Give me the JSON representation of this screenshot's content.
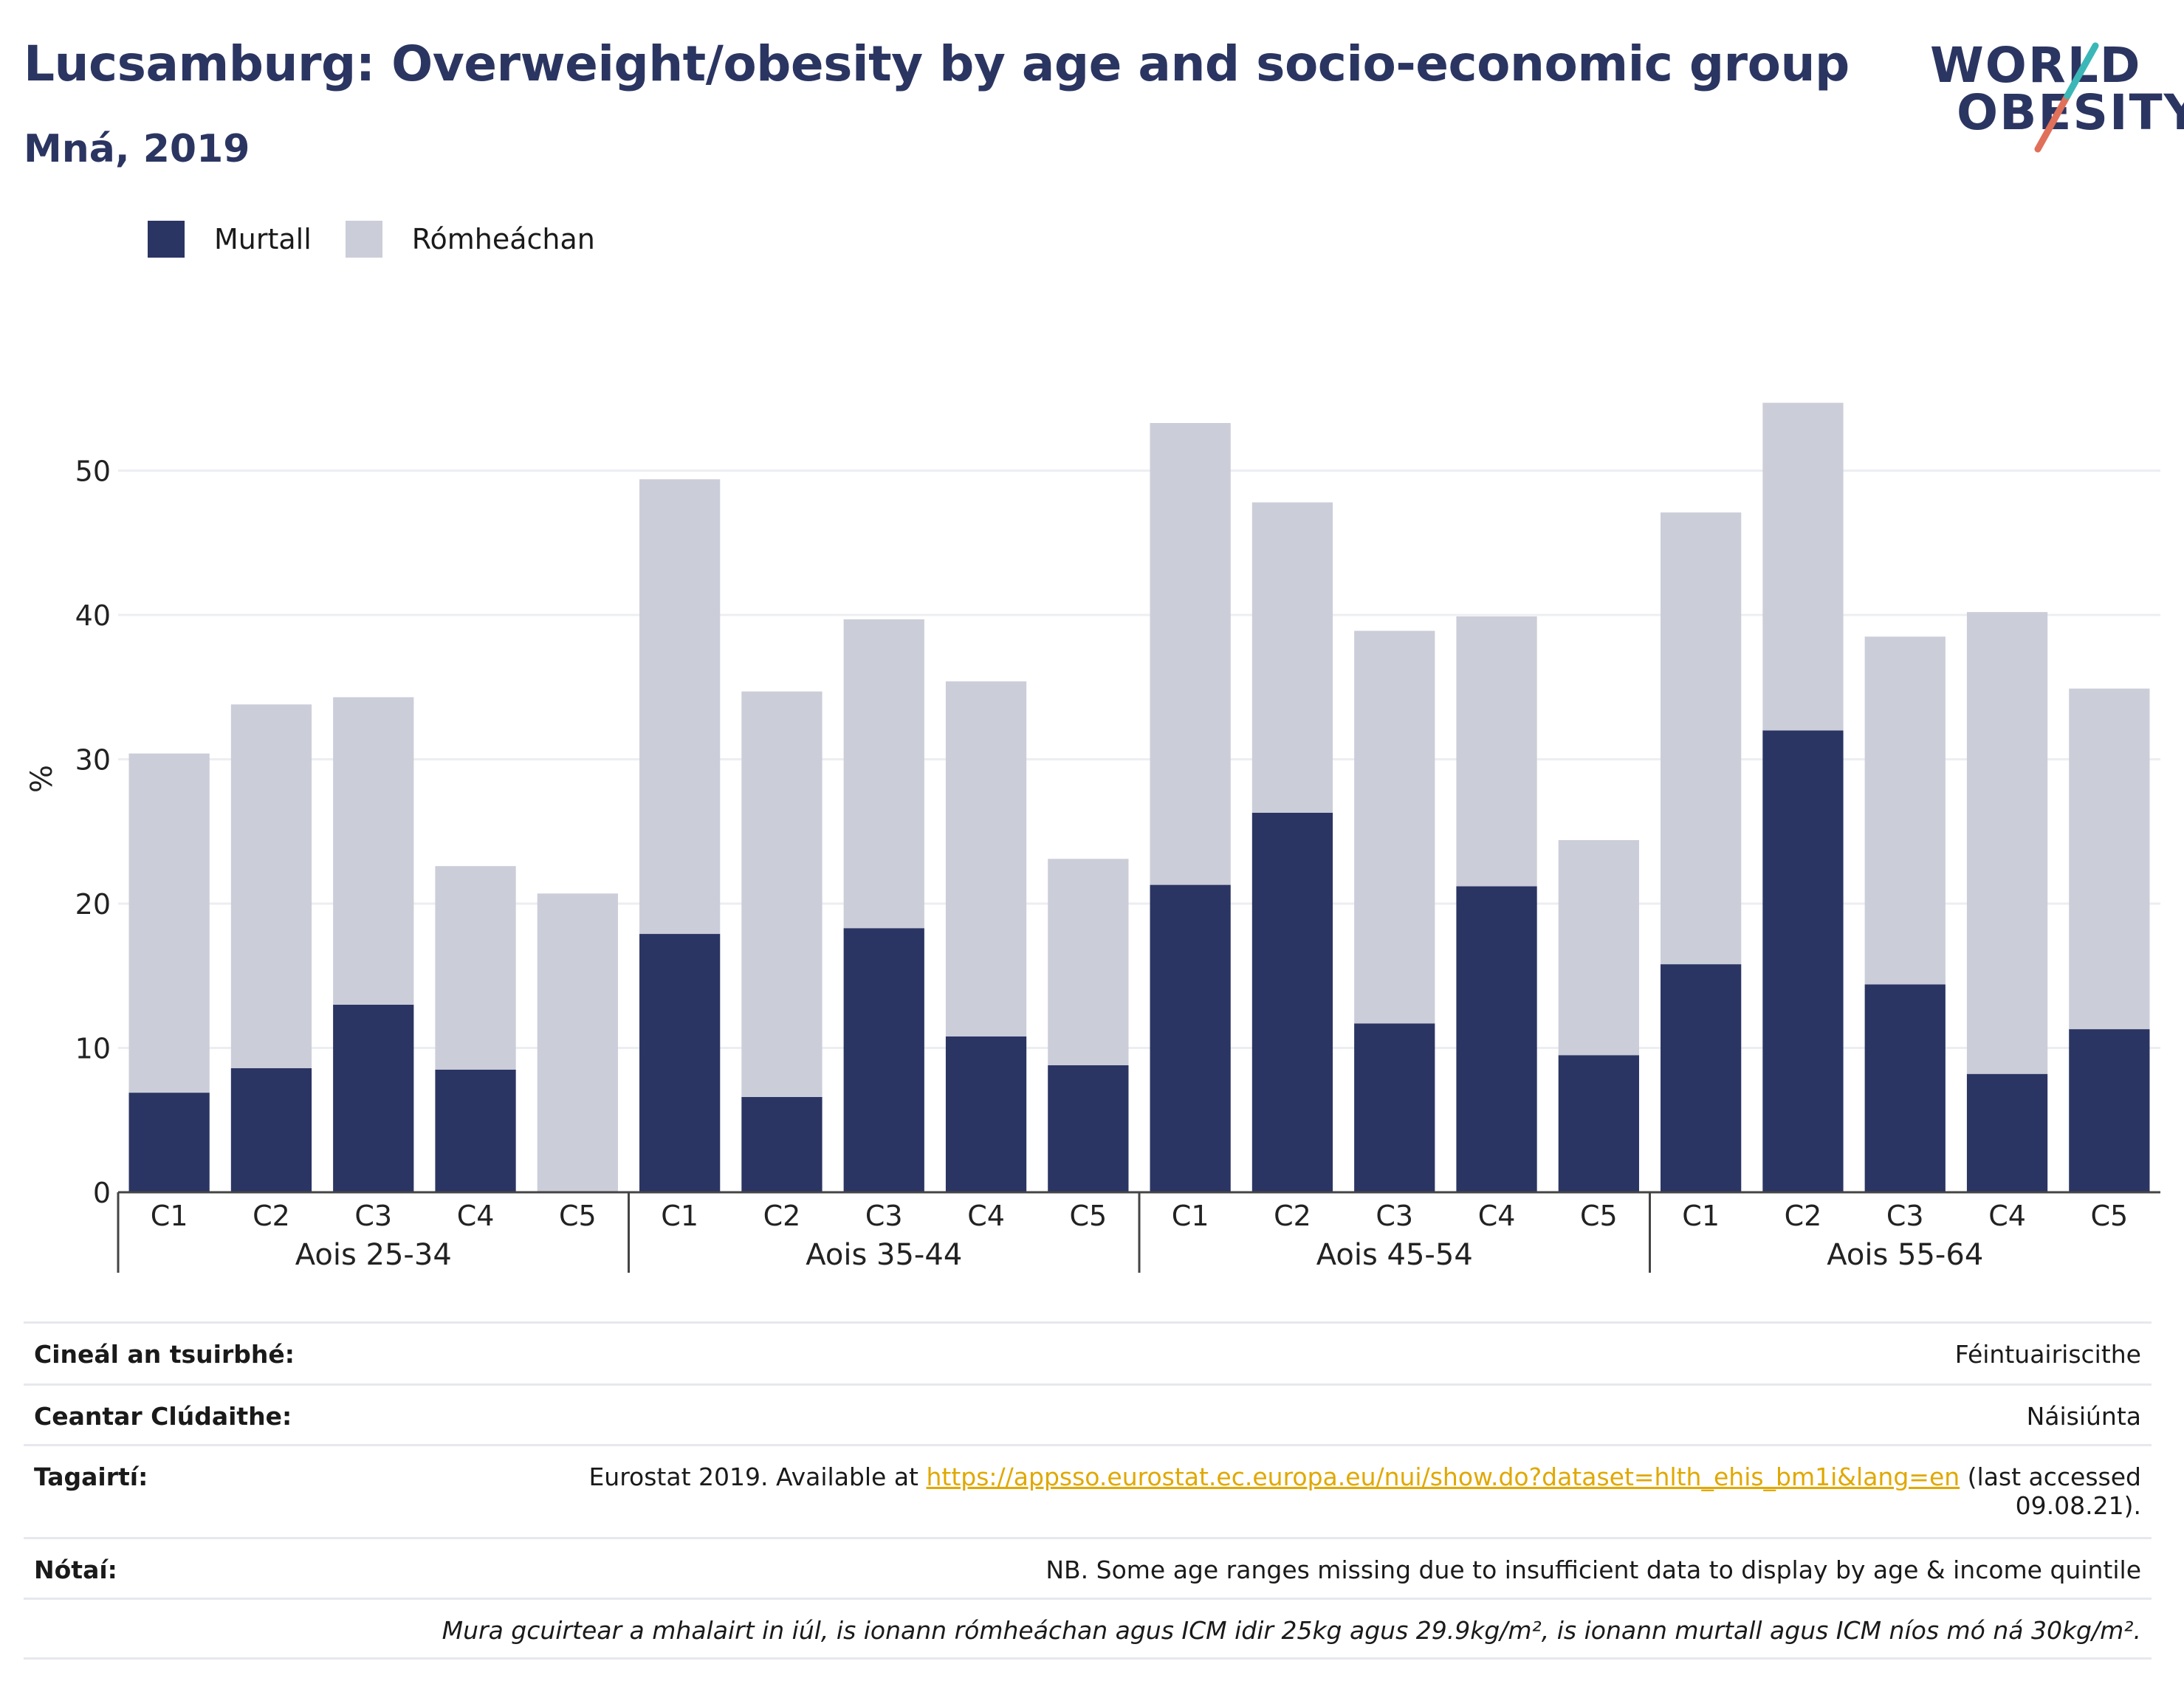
{
  "header": {
    "title": "Lucsamburg: Overweight/obesity by age and socio-economic group",
    "subtitle": "Mná, 2019"
  },
  "logo": {
    "line1": "WORLD",
    "line2": "OBESITY"
  },
  "colors": {
    "obese": "#2b3563",
    "overweight": "#cbcdd9",
    "title": "#2b3561",
    "link": "#e0a800"
  },
  "chart_data": {
    "type": "bar",
    "stacked": true,
    "ylabel": "%",
    "ylim": [
      0,
      55
    ],
    "yticks": [
      0,
      10,
      20,
      30,
      40,
      50
    ],
    "grid": true,
    "legend_position": "top-left",
    "categories": [
      "C1",
      "C2",
      "C3",
      "C4",
      "C5"
    ],
    "groups": [
      "Aois 25-34",
      "Aois 35-44",
      "Aois 45-54",
      "Aois 55-64"
    ],
    "series": [
      {
        "name": "Murtall",
        "color": "#2b3563",
        "values": [
          [
            6.9,
            8.6,
            13.0,
            8.5,
            0
          ],
          [
            17.9,
            6.6,
            18.3,
            10.8,
            8.8
          ],
          [
            21.3,
            26.3,
            11.7,
            21.2,
            9.5
          ],
          [
            15.8,
            32.0,
            14.4,
            8.2,
            11.3
          ]
        ]
      },
      {
        "name": "Rómheáchan",
        "color": "#cbcdd9",
        "values": [
          [
            23.5,
            25.2,
            21.3,
            14.1,
            20.7
          ],
          [
            31.5,
            28.1,
            21.4,
            24.6,
            14.3
          ],
          [
            32.0,
            21.5,
            27.2,
            18.7,
            14.9
          ],
          [
            31.3,
            22.7,
            24.1,
            32.0,
            23.6
          ]
        ]
      }
    ]
  },
  "info": {
    "survey_type_label": "Cineál an tsuirbhé:",
    "survey_type_value": "Féintuairiscithe",
    "coverage_label": "Ceantar Clúdaithe:",
    "coverage_value": "Náisiúnta",
    "references_label": "Tagairtí:",
    "references_prefix": "Eurostat 2019. Available at ",
    "references_link": "https://appsso.eurostat.ec.europa.eu/nui/show.do?dataset=hlth_ehis_bm1i&lang=en",
    "references_suffix": " (last accessed",
    "references_suffix2": "09.08.21).",
    "notes_label": "Nótaí:",
    "notes_value": "NB. Some age ranges missing due to insufficient data to display by age & income quintile",
    "definition": "Mura gcuirtear a mhalairt in iúl, is ionann rómheáchan agus ICM idir 25kg agus 29.9kg/m², is ionann murtall agus ICM níos mó ná 30kg/m²."
  }
}
